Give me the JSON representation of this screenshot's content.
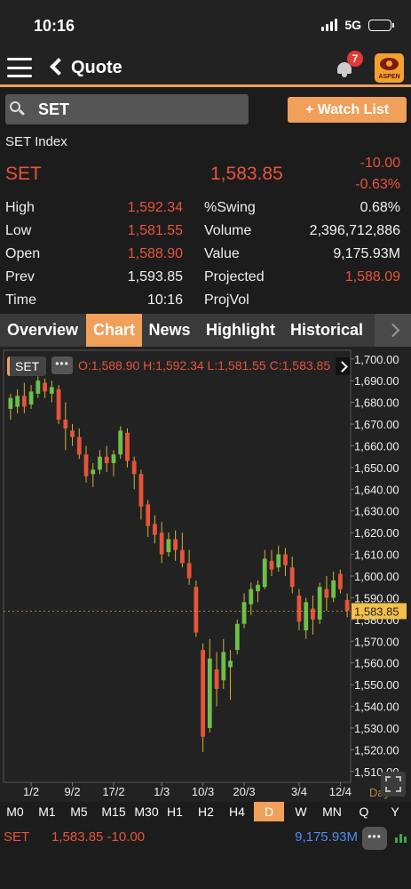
{
  "status_bar": {
    "time": "10:16",
    "network": "5G"
  },
  "nav": {
    "title": "Quote",
    "notification_count": "7",
    "logo_text": "ASPEN"
  },
  "search": {
    "value": "SET",
    "watch_button": "+ Watch List"
  },
  "quote": {
    "index_name": "SET Index",
    "symbol": "SET",
    "last": "1,583.85",
    "change": "-10.00",
    "change_pct": "-0.63%",
    "left_rows": [
      {
        "label": "High",
        "value": "1,592.34",
        "color": "red"
      },
      {
        "label": "Low",
        "value": "1,581.55",
        "color": "red"
      },
      {
        "label": "Open",
        "value": "1,588.90",
        "color": "red"
      },
      {
        "label": "Prev",
        "value": "1,593.85",
        "color": "white"
      },
      {
        "label": "Time",
        "value": "10:16",
        "color": "white"
      }
    ],
    "right_rows": [
      {
        "label": "%Swing",
        "value": "0.68%",
        "color": "white"
      },
      {
        "label": "Volume",
        "value": "2,396,712,886",
        "color": "white"
      },
      {
        "label": "Value",
        "value": "9,175.93M",
        "color": "white"
      },
      {
        "label": "Projected",
        "value": "1,588.09",
        "color": "red"
      },
      {
        "label": "ProjVol",
        "value": "",
        "color": "white"
      }
    ]
  },
  "tabs": [
    {
      "label": "Overview",
      "active": false
    },
    {
      "label": "Chart",
      "active": true
    },
    {
      "label": "News",
      "active": false
    },
    {
      "label": "Highlight",
      "active": false
    },
    {
      "label": "Historical",
      "active": false
    }
  ],
  "chart_header": {
    "badge": "SET",
    "more": "•••",
    "ohlc": "O:1,588.90  H:1,592.34  L:1,581.55  C:1,583.85"
  },
  "chart_data": {
    "type": "candlestick",
    "ylim": [
      1505,
      1704
    ],
    "y_ticks": [
      1700,
      1690,
      1680,
      1670,
      1660,
      1650,
      1640,
      1630,
      1620,
      1610,
      1600,
      1590,
      1580,
      1570,
      1560,
      1550,
      1540,
      1530,
      1520,
      1510
    ],
    "y_tick_labels": [
      "1,700.00",
      "1,690.00",
      "1,680.00",
      "1,670.00",
      "1,660.00",
      "1,650.00",
      "1,640.00",
      "1,630.00",
      "1,620.00",
      "1,610.00",
      "1,600.00",
      "1,590.00",
      "1,580.00",
      "1,570.00",
      "1,560.00",
      "1,550.00",
      "1,540.00",
      "1,530.00",
      "1,520.00",
      "1,510.00"
    ],
    "x_labels": [
      "1/2",
      "9/2",
      "17/2",
      "1/3",
      "10/3",
      "20/3",
      "3/4",
      "12/4"
    ],
    "x_label_index": [
      3,
      9,
      15,
      22,
      28,
      34,
      42,
      48
    ],
    "last_price_label": "1,583.85",
    "last_price": 1583.85,
    "up_color": "#6cc04a",
    "down_color": "#e8533b",
    "candles": [
      {
        "o": 1677,
        "h": 1684,
        "l": 1672,
        "c": 1682
      },
      {
        "o": 1678,
        "h": 1686,
        "l": 1675,
        "c": 1683
      },
      {
        "o": 1683,
        "h": 1689,
        "l": 1675,
        "c": 1678
      },
      {
        "o": 1679,
        "h": 1688,
        "l": 1677,
        "c": 1685
      },
      {
        "o": 1684,
        "h": 1692,
        "l": 1682,
        "c": 1690
      },
      {
        "o": 1689,
        "h": 1691,
        "l": 1682,
        "c": 1685
      },
      {
        "o": 1684,
        "h": 1690,
        "l": 1680,
        "c": 1687
      },
      {
        "o": 1686,
        "h": 1688,
        "l": 1670,
        "c": 1672
      },
      {
        "o": 1672,
        "h": 1680,
        "l": 1658,
        "c": 1668
      },
      {
        "o": 1667,
        "h": 1670,
        "l": 1660,
        "c": 1664
      },
      {
        "o": 1664,
        "h": 1668,
        "l": 1654,
        "c": 1656
      },
      {
        "o": 1656,
        "h": 1660,
        "l": 1643,
        "c": 1646
      },
      {
        "o": 1647,
        "h": 1652,
        "l": 1641,
        "c": 1649
      },
      {
        "o": 1649,
        "h": 1658,
        "l": 1647,
        "c": 1655
      },
      {
        "o": 1655,
        "h": 1660,
        "l": 1648,
        "c": 1652
      },
      {
        "o": 1652,
        "h": 1658,
        "l": 1646,
        "c": 1656
      },
      {
        "o": 1656,
        "h": 1669,
        "l": 1654,
        "c": 1667
      },
      {
        "o": 1666,
        "h": 1668,
        "l": 1650,
        "c": 1653
      },
      {
        "o": 1653,
        "h": 1655,
        "l": 1640,
        "c": 1647
      },
      {
        "o": 1647,
        "h": 1649,
        "l": 1626,
        "c": 1632
      },
      {
        "o": 1633,
        "h": 1635,
        "l": 1618,
        "c": 1623
      },
      {
        "o": 1624,
        "h": 1628,
        "l": 1615,
        "c": 1619
      },
      {
        "o": 1620,
        "h": 1625,
        "l": 1606,
        "c": 1610
      },
      {
        "o": 1611,
        "h": 1620,
        "l": 1609,
        "c": 1617
      },
      {
        "o": 1617,
        "h": 1621,
        "l": 1607,
        "c": 1612
      },
      {
        "o": 1612,
        "h": 1620,
        "l": 1604,
        "c": 1606
      },
      {
        "o": 1606,
        "h": 1612,
        "l": 1596,
        "c": 1599
      },
      {
        "o": 1595,
        "h": 1598,
        "l": 1572,
        "c": 1574
      },
      {
        "o": 1566,
        "h": 1569,
        "l": 1519,
        "c": 1526
      },
      {
        "o": 1530,
        "h": 1571,
        "l": 1528,
        "c": 1562
      },
      {
        "o": 1557,
        "h": 1565,
        "l": 1540,
        "c": 1548
      },
      {
        "o": 1552,
        "h": 1571,
        "l": 1548,
        "c": 1565
      },
      {
        "o": 1558,
        "h": 1566,
        "l": 1543,
        "c": 1561
      },
      {
        "o": 1566,
        "h": 1580,
        "l": 1564,
        "c": 1578
      },
      {
        "o": 1578,
        "h": 1592,
        "l": 1576,
        "c": 1588
      },
      {
        "o": 1587,
        "h": 1597,
        "l": 1582,
        "c": 1594
      },
      {
        "o": 1593,
        "h": 1598,
        "l": 1588,
        "c": 1596
      },
      {
        "o": 1595,
        "h": 1612,
        "l": 1594,
        "c": 1608
      },
      {
        "o": 1607,
        "h": 1612,
        "l": 1600,
        "c": 1603
      },
      {
        "o": 1604,
        "h": 1614,
        "l": 1602,
        "c": 1610
      },
      {
        "o": 1610,
        "h": 1613,
        "l": 1600,
        "c": 1605
      },
      {
        "o": 1604,
        "h": 1609,
        "l": 1592,
        "c": 1595
      },
      {
        "o": 1591,
        "h": 1594,
        "l": 1575,
        "c": 1579
      },
      {
        "o": 1575,
        "h": 1590,
        "l": 1571,
        "c": 1588
      },
      {
        "o": 1585,
        "h": 1591,
        "l": 1573,
        "c": 1580
      },
      {
        "o": 1580,
        "h": 1597,
        "l": 1578,
        "c": 1595
      },
      {
        "o": 1594,
        "h": 1600,
        "l": 1584,
        "c": 1590
      },
      {
        "o": 1590,
        "h": 1602,
        "l": 1588,
        "c": 1598
      },
      {
        "o": 1601,
        "h": 1603,
        "l": 1592,
        "c": 1594
      },
      {
        "o": 1589,
        "h": 1592,
        "l": 1581,
        "c": 1584
      }
    ]
  },
  "chart_footer": {
    "period_label": "Day"
  },
  "timeframes": [
    {
      "label": "M0",
      "active": false
    },
    {
      "label": "M1",
      "active": false
    },
    {
      "label": "M5",
      "active": false
    },
    {
      "label": "M15",
      "active": false
    },
    {
      "label": "M30",
      "active": false
    },
    {
      "label": "H1",
      "active": false
    },
    {
      "label": "H2",
      "active": false
    },
    {
      "label": "H4",
      "active": false
    },
    {
      "label": "D",
      "active": true
    },
    {
      "label": "W",
      "active": false
    },
    {
      "label": "MN",
      "active": false
    },
    {
      "label": "Q",
      "active": false
    },
    {
      "label": "Y",
      "active": false
    }
  ],
  "bottom_bar": {
    "symbol": "SET",
    "price_change": "1,583.85 -10.00",
    "value": "9,175.93M",
    "more": "•••"
  }
}
